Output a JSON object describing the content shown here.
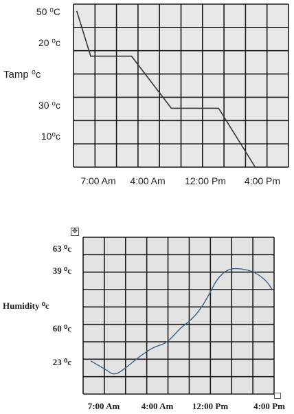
{
  "chart_data": [
    {
      "type": "line",
      "ylabel": "Tamp ⁰c",
      "y_tick_labels": [
        "50 ⁰C",
        "20 ⁰c",
        "30 ⁰c",
        "10⁰c"
      ],
      "x_tick_labels": [
        "7:00 Am",
        "4:00 Am",
        "12:00 Pm",
        "4:00 Pm"
      ],
      "grid": true,
      "grid_columns": 8,
      "grid_rows": 7,
      "style": "segmented",
      "colors": {
        "line": "#333333",
        "grid": "#1a1a1a",
        "background": "#e8e8e8"
      },
      "series": [
        {
          "points": [
            [
              0.15,
              0.3
            ],
            [
              0.8,
              2.3
            ],
            [
              2.7,
              2.3
            ],
            [
              4.55,
              4.6
            ],
            [
              6.75,
              4.6
            ],
            [
              8.45,
              7.2
            ],
            [
              9.9,
              7.2
            ]
          ]
        }
      ]
    },
    {
      "type": "line",
      "ylabel": "Humidity ⁰c",
      "y_tick_labels": [
        "63 ⁰c",
        "39 ⁰c",
        "60 ⁰c",
        "23 ⁰c"
      ],
      "x_tick_labels": [
        "7:00 Am",
        "4:00 Am",
        "12:00 Pm",
        "4:00 Pm"
      ],
      "grid": true,
      "grid_columns": 8,
      "grid_rows": 9,
      "style": "smooth",
      "colors": {
        "line": "#3b5c86",
        "grid": "#1a1a1a",
        "background": "#e3e3e3"
      },
      "series": [
        {
          "points": [
            [
              0.4,
              7.1
            ],
            [
              1.2,
              7.6
            ],
            [
              1.65,
              7.95
            ],
            [
              2.35,
              7.4
            ],
            [
              3.0,
              6.8
            ],
            [
              3.7,
              6.3
            ],
            [
              4.3,
              6.1
            ],
            [
              4.7,
              5.7
            ],
            [
              5.1,
              5.2
            ],
            [
              5.6,
              4.8
            ],
            [
              6.1,
              4.2
            ],
            [
              6.6,
              3.3
            ],
            [
              7.0,
              2.4
            ],
            [
              7.6,
              1.8
            ],
            [
              8.3,
              1.8
            ],
            [
              9.0,
              2.0
            ],
            [
              9.6,
              2.5
            ],
            [
              9.9,
              3.0
            ]
          ]
        }
      ]
    }
  ]
}
